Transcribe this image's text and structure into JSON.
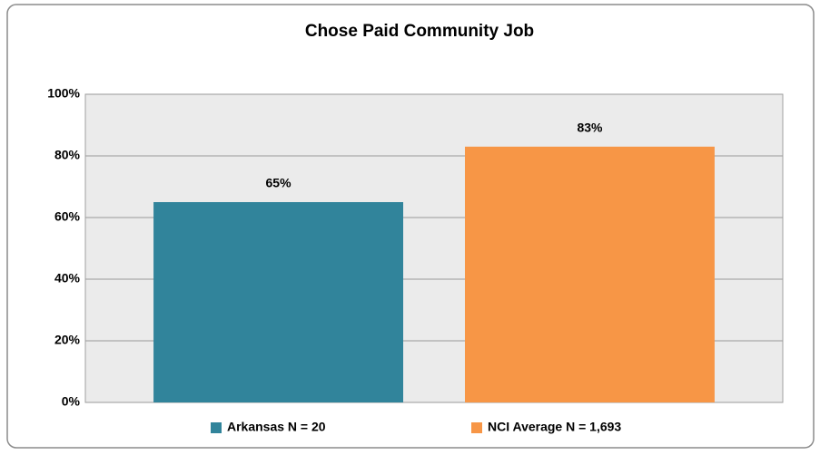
{
  "chart_data": {
    "type": "bar",
    "title": "Chose Paid Community Job",
    "categories": [
      null
    ],
    "series": [
      {
        "name": "Arkansas N = 20",
        "color": "#31849b",
        "values": [
          65
        ],
        "value_labels": [
          "65%"
        ]
      },
      {
        "name": "NCI Average N = 1,693",
        "color": "#f79646",
        "values": [
          83
        ],
        "value_labels": [
          "83%"
        ]
      }
    ],
    "ylim": [
      0,
      100
    ],
    "yticks": [
      {
        "value": 0,
        "label": "0%"
      },
      {
        "value": 20,
        "label": "20%"
      },
      {
        "value": 40,
        "label": "40%"
      },
      {
        "value": 60,
        "label": "60%"
      },
      {
        "value": 80,
        "label": "80%"
      },
      {
        "value": 100,
        "label": "100%"
      }
    ],
    "grid": true,
    "legend": "bottom"
  }
}
